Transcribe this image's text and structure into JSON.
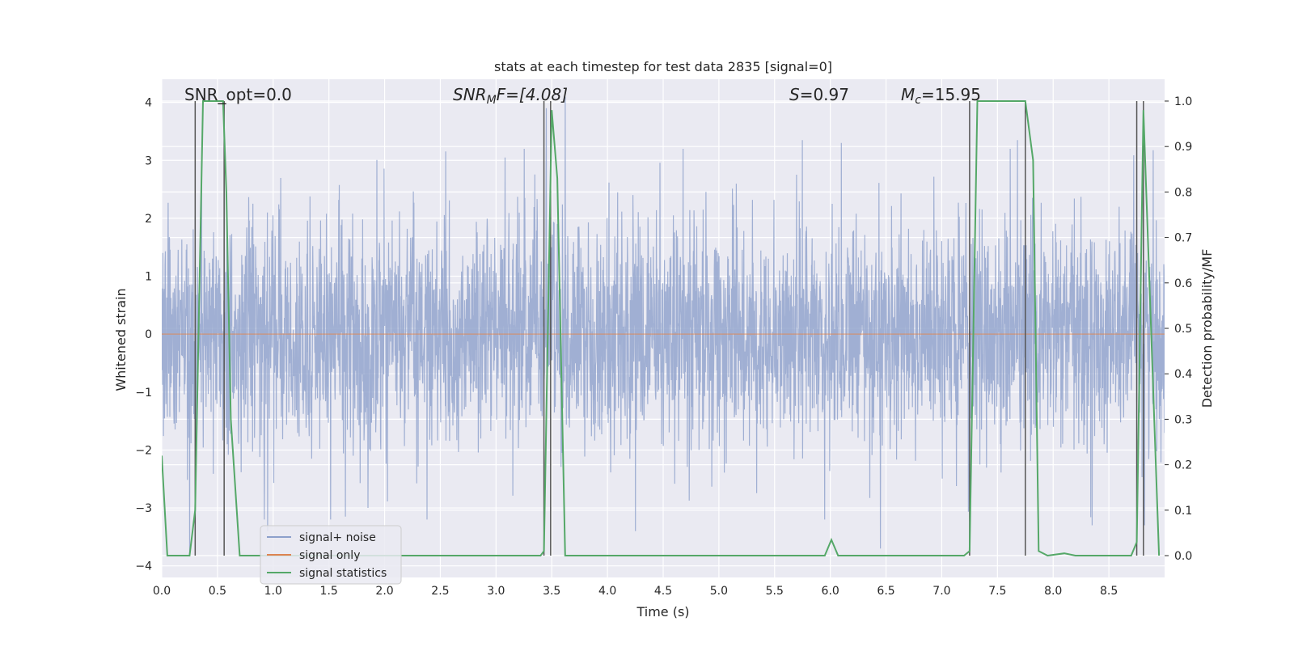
{
  "chart_data": {
    "type": "line",
    "title": "stats at each timestep for test data 2835 [signal=0]",
    "xlabel": "Time (s)",
    "ylabel": "Whitened strain",
    "y2label": "Detection probability/MF",
    "xlim": [
      0,
      9.0
    ],
    "ylim": [
      -4.2,
      4.4
    ],
    "y2lim": [
      -0.048,
      1.048
    ],
    "xticks": [
      "0.0",
      "0.5",
      "1.0",
      "1.5",
      "2.0",
      "2.5",
      "3.0",
      "3.5",
      "4.0",
      "4.5",
      "5.0",
      "5.5",
      "6.0",
      "6.5",
      "7.0",
      "7.5",
      "8.0",
      "8.5"
    ],
    "yticks": [
      "4",
      "3",
      "2",
      "1",
      "0",
      "−1",
      "−2",
      "−3",
      "−4"
    ],
    "y2ticks": [
      "1.0",
      "0.9",
      "0.8",
      "0.7",
      "0.6",
      "0.5",
      "0.4",
      "0.3",
      "0.2",
      "0.1",
      "0.0"
    ],
    "annotations": {
      "snr_opt": "SNR_opt=0.0",
      "snr_mf_label": "SNR",
      "snr_mf_sub": "M",
      "snr_mf_rest": "F=[4.08]",
      "s_label": "S",
      "s_rest": "=0.97",
      "mc_label": "M",
      "mc_sub": "c",
      "mc_rest": "=15.95"
    },
    "series": [
      {
        "name": "signal+ noise",
        "color": "#8da0cb",
        "description": "whitened strain noise, roughly normal with sigma~1, spikes up to ~4",
        "spikes": [
          [
            0.25,
            -3.8
          ],
          [
            0.95,
            -3.4
          ],
          [
            1.85,
            -3.0
          ],
          [
            3.08,
            3.05
          ],
          [
            3.45,
            3.9
          ],
          [
            3.62,
            4.1
          ],
          [
            4.25,
            -3.4
          ],
          [
            4.68,
            3.2
          ],
          [
            5.75,
            3.35
          ],
          [
            5.95,
            -3.2
          ],
          [
            6.1,
            3.3
          ],
          [
            6.45,
            -3.7
          ],
          [
            7.68,
            3.35
          ],
          [
            8.35,
            -3.3
          ],
          [
            8.82,
            -3.3
          ]
        ]
      },
      {
        "name": "signal only",
        "color": "#dd8452",
        "values": [
          0.0
        ]
      },
      {
        "name": "signal statistics",
        "color": "#55a868",
        "x": [
          0.0,
          0.05,
          0.2,
          0.25,
          0.3,
          0.37,
          0.4,
          0.55,
          0.58,
          0.62,
          0.7,
          1.0,
          3.4,
          3.43,
          3.5,
          3.55,
          3.62,
          3.7,
          5.9,
          5.95,
          6.01,
          6.07,
          7.2,
          7.25,
          7.32,
          7.5,
          7.75,
          7.82,
          7.87,
          7.95,
          8.1,
          8.2,
          8.7,
          8.75,
          8.81,
          8.85,
          8.95
        ],
        "values": [
          0.22,
          0.0,
          0.0,
          0.0,
          0.1,
          1.0,
          1.0,
          1.0,
          0.8,
          0.3,
          0.0,
          0.0,
          0.0,
          0.01,
          0.98,
          0.83,
          0.0,
          0.0,
          0.0,
          0.0,
          0.035,
          0.0,
          0.0,
          0.01,
          1.0,
          1.0,
          1.0,
          0.87,
          0.01,
          0.0,
          0.005,
          0.0,
          0.0,
          0.03,
          0.98,
          0.7,
          0.0
        ]
      }
    ],
    "vertical_lines_x": [
      0.3,
      0.56,
      3.43,
      3.49,
      7.25,
      7.75,
      8.75,
      8.81
    ],
    "legend": {
      "placement": "lower-left",
      "entries": [
        "signal+ noise",
        "signal only",
        "signal statistics"
      ]
    }
  },
  "colors": {
    "axes_bg": "#eaeaf2",
    "grid": "#ffffff",
    "noise": "#8da0cb",
    "signal_only": "#dd8452",
    "stats": "#55a868",
    "vline": "#555555"
  }
}
